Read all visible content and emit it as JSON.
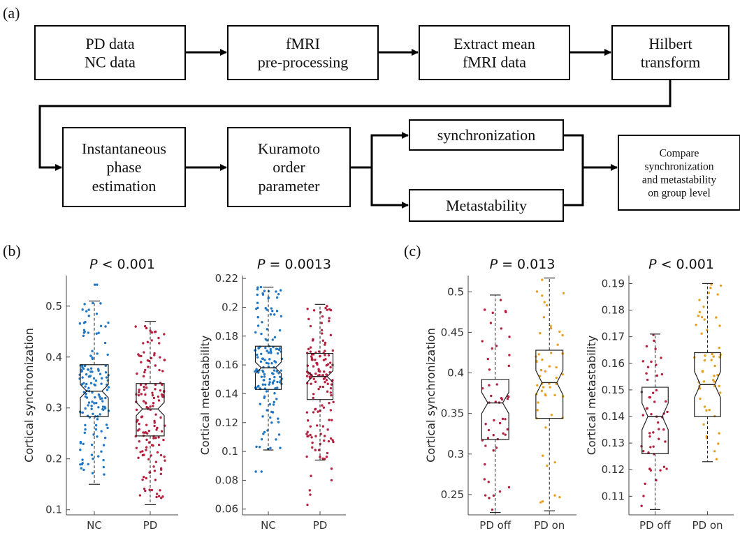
{
  "panels": {
    "a": "(a)",
    "b": "(b)",
    "c": "(c)"
  },
  "flowchart": {
    "boxes": [
      {
        "id": "data",
        "lines": [
          "PD data",
          "NC data"
        ]
      },
      {
        "id": "preproc",
        "lines": [
          "fMRI",
          "pre-processing"
        ]
      },
      {
        "id": "extract",
        "lines": [
          "Extract mean",
          "fMRI data"
        ]
      },
      {
        "id": "hilbert",
        "lines": [
          "Hilbert",
          "transform"
        ]
      },
      {
        "id": "phase",
        "lines": [
          "Instantaneous",
          "phase",
          "estimation"
        ]
      },
      {
        "id": "kuramoto",
        "lines": [
          "Kuramoto",
          "order",
          "parameter"
        ]
      },
      {
        "id": "sync",
        "lines": [
          "synchronization"
        ]
      },
      {
        "id": "meta",
        "lines": [
          "Metastability"
        ]
      },
      {
        "id": "compare",
        "lines": [
          "Compare",
          "synchronization",
          "and metastability",
          "on group level"
        ]
      }
    ]
  },
  "colors": {
    "nc": "#1f77c4",
    "pd": "#b5203f",
    "pd_on": "#e8a020",
    "box": "#000000"
  },
  "chart_data": [
    {
      "type": "box",
      "title_prefix": "P",
      "title_rest": " < 0.001",
      "ylabel": "Cortical synchronization",
      "ylim": [
        0.09,
        0.56
      ],
      "yticks": [
        0.1,
        0.2,
        0.3,
        0.4,
        0.5
      ],
      "categories": [
        "NC",
        "PD"
      ],
      "series": [
        {
          "category": "NC",
          "color_key": "nc",
          "n": 145,
          "whisker_low": 0.15,
          "q1": 0.283,
          "median": 0.333,
          "q3": 0.385,
          "whisker_high": 0.51,
          "notch_low": 0.32,
          "notch_high": 0.346,
          "outliers": [
            0.542,
            0.542
          ]
        },
        {
          "category": "PD",
          "color_key": "pd",
          "n": 145,
          "whisker_low": 0.11,
          "q1": 0.245,
          "median": 0.298,
          "q3": 0.348,
          "whisker_high": 0.47,
          "notch_low": 0.285,
          "notch_high": 0.311,
          "outliers": []
        }
      ]
    },
    {
      "type": "box",
      "title_prefix": "P",
      "title_rest": " = 0.0013",
      "ylabel": "Cortical metastability",
      "ylim": [
        0.056,
        0.222
      ],
      "yticks": [
        0.06,
        0.08,
        0.1,
        0.12,
        0.14,
        0.16,
        0.18,
        0.2,
        0.22
      ],
      "categories": [
        "NC",
        "PD"
      ],
      "series": [
        {
          "category": "NC",
          "color_key": "nc",
          "n": 145,
          "whisker_low": 0.101,
          "q1": 0.143,
          "median": 0.158,
          "q3": 0.173,
          "whisker_high": 0.214,
          "notch_low": 0.154,
          "notch_high": 0.162,
          "outliers": [
            0.086,
            0.086
          ]
        },
        {
          "category": "PD",
          "color_key": "pd",
          "n": 145,
          "whisker_low": 0.094,
          "q1": 0.136,
          "median": 0.152,
          "q3": 0.168,
          "whisker_high": 0.202,
          "notch_low": 0.148,
          "notch_high": 0.156,
          "outliers": [
            0.063,
            0.07,
            0.073,
            0.08,
            0.083,
            0.088
          ]
        }
      ]
    },
    {
      "type": "box",
      "title_prefix": "P",
      "title_rest": " = 0.013",
      "ylabel": "Cortical synchronization",
      "ylim": [
        0.225,
        0.52
      ],
      "yticks": [
        0.25,
        0.3,
        0.35,
        0.4,
        0.45,
        0.5
      ],
      "categories": [
        "PD off",
        "PD on"
      ],
      "series": [
        {
          "category": "PD off",
          "color_key": "pd",
          "n": 52,
          "whisker_low": 0.228,
          "q1": 0.318,
          "median": 0.363,
          "q3": 0.392,
          "whisker_high": 0.496,
          "notch_low": 0.35,
          "notch_high": 0.376,
          "outliers": []
        },
        {
          "category": "PD on",
          "color_key": "pd_on",
          "n": 52,
          "whisker_low": 0.23,
          "q1": 0.344,
          "median": 0.388,
          "q3": 0.428,
          "whisker_high": 0.517,
          "notch_low": 0.373,
          "notch_high": 0.403,
          "outliers": []
        }
      ]
    },
    {
      "type": "box",
      "title_prefix": "P",
      "title_rest": " < 0.001",
      "ylabel": "Cortical metastability",
      "ylim": [
        0.103,
        0.193
      ],
      "yticks": [
        0.11,
        0.12,
        0.13,
        0.14,
        0.15,
        0.16,
        0.17,
        0.18,
        0.19
      ],
      "categories": [
        "PD off",
        "PD on"
      ],
      "series": [
        {
          "category": "PD off",
          "color_key": "pd",
          "n": 52,
          "whisker_low": 0.105,
          "q1": 0.126,
          "median": 0.14,
          "q3": 0.151,
          "whisker_high": 0.171,
          "notch_low": 0.135,
          "notch_high": 0.145,
          "outliers": []
        },
        {
          "category": "PD on",
          "color_key": "pd_on",
          "n": 52,
          "whisker_low": 0.123,
          "q1": 0.14,
          "median": 0.152,
          "q3": 0.164,
          "whisker_high": 0.19,
          "notch_low": 0.147,
          "notch_high": 0.157,
          "outliers": []
        }
      ]
    }
  ]
}
